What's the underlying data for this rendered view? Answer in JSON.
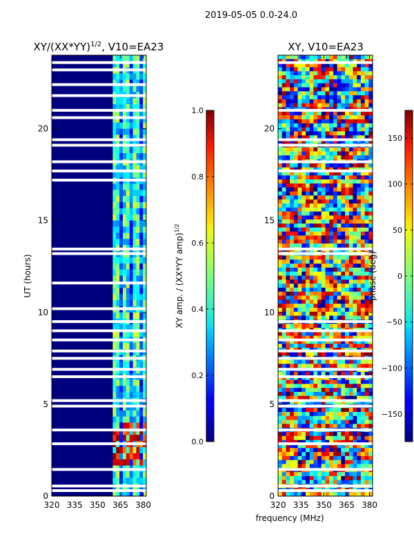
{
  "suptitle": "2019-05-05 0.0-24.0",
  "colors": {
    "background": "#00007f",
    "band": "#3fd0c0",
    "band_alt": "#7fff7f",
    "gap": "#ffffff"
  },
  "chart_data": [
    {
      "type": "heatmap",
      "title_main": "XY/(XX*YY)",
      "title_sup": "1/2",
      "title_tail": ", V10=EA23",
      "ylabel": "UT (hours)",
      "xlim": [
        320,
        382
      ],
      "ylim": [
        0,
        24
      ],
      "xticks": [
        "320",
        "335",
        "350",
        "365",
        "380"
      ],
      "xtick_values": [
        320,
        335,
        350,
        365,
        380
      ],
      "yticks": [
        "0",
        "5",
        "10",
        "15",
        "20"
      ],
      "ytick_values": [
        0,
        5,
        10,
        15,
        20
      ],
      "active_band_mhz": [
        360,
        382
      ],
      "data_gaps_hours": [
        0.3,
        0.55,
        1.45,
        2.85,
        3.6,
        4.9,
        5.2,
        6.5,
        6.9,
        7.5,
        7.9,
        8.5,
        9.0,
        9.5,
        10.2,
        11.6,
        13.2,
        13.45,
        17.2,
        17.7,
        18.2,
        19.1,
        19.4,
        20.6,
        21.0,
        21.8,
        22.4,
        23.2,
        23.6
      ],
      "colorbar": {
        "label_main": "XY amp. / (XX*YY amp)",
        "label_sup": "1/2",
        "ticks": [
          "0.0",
          "0.2",
          "0.4",
          "0.6",
          "0.8",
          "1.0"
        ],
        "tick_values": [
          0.0,
          0.2,
          0.4,
          0.6,
          0.8,
          1.0
        ],
        "range": [
          0.0,
          1.0
        ]
      }
    },
    {
      "type": "heatmap",
      "title": "XY, V10=EA23",
      "xlabel": "frequency (MHz)",
      "xlim": [
        320,
        382
      ],
      "ylim": [
        0,
        24
      ],
      "xticks": [
        "320",
        "335",
        "350",
        "365",
        "380"
      ],
      "xtick_values": [
        320,
        335,
        350,
        365,
        380
      ],
      "yticks": [
        "0",
        "5",
        "10",
        "15",
        "20"
      ],
      "ytick_values": [
        0,
        5,
        10,
        15,
        20
      ],
      "data_gaps_hours": [
        0.3,
        0.55,
        1.45,
        2.85,
        3.6,
        4.9,
        5.2,
        6.5,
        6.9,
        7.5,
        7.9,
        8.5,
        9.0,
        9.5,
        13.2,
        13.45,
        17.7,
        18.2,
        19.1,
        19.4,
        21.0,
        23.6
      ],
      "colorbar": {
        "label": "phase (deg)",
        "ticks": [
          "150",
          "100",
          "50",
          "0",
          "−50",
          "−100",
          "−150"
        ],
        "tick_values": [
          150,
          100,
          50,
          0,
          -50,
          -100,
          -150
        ],
        "range": [
          -180,
          180
        ]
      }
    }
  ]
}
